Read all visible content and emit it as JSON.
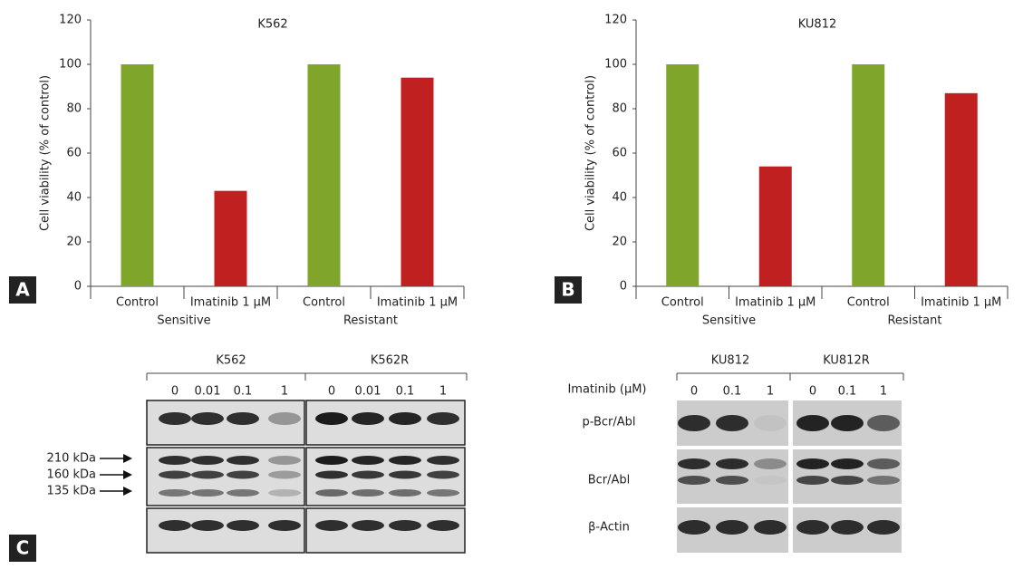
{
  "chart_data": [
    {
      "type": "bar",
      "panel": "A",
      "title": "K562",
      "y_label": "Cell viability (% of control)",
      "categories": [
        "Control",
        "Imatinib 1 μM",
        "Control",
        "Imatinib 1 μM"
      ],
      "groups": [
        "Sensitive",
        "Resistant"
      ],
      "values": [
        100,
        43,
        100,
        94
      ],
      "colors": [
        "#7fa52b",
        "#c0201f",
        "#7fa52b",
        "#c0201f"
      ],
      "ylim": [
        0,
        120
      ],
      "yticks": [
        0,
        20,
        40,
        60,
        80,
        100,
        120
      ]
    },
    {
      "type": "bar",
      "panel": "B",
      "title": "KU812",
      "y_label": "Cell viability (% of control)",
      "categories": [
        "Control",
        "Imatinib 1 μM",
        "Control",
        "Imatinib 1 μM"
      ],
      "groups": [
        "Sensitive",
        "Resistant"
      ],
      "values": [
        100,
        54,
        100,
        87
      ],
      "colors": [
        "#7fa52b",
        "#c0201f",
        "#7fa52b",
        "#c0201f"
      ],
      "ylim": [
        0,
        120
      ],
      "yticks": [
        0,
        20,
        40,
        60,
        80,
        100,
        120
      ]
    }
  ],
  "blots": {
    "panel": "C",
    "left": {
      "groups": [
        "K562",
        "K562R"
      ],
      "lanes": [
        "0",
        "0.01",
        "0.1",
        "1",
        "0",
        "0.01",
        "0.1",
        "1"
      ],
      "markers": [
        "210 kDa",
        "160 kDa",
        "135 kDa"
      ]
    },
    "right": {
      "treatment_label": "Imatinib (μM)",
      "groups": [
        "KU812",
        "KU812R"
      ],
      "lanes": [
        "0",
        "0.1",
        "1",
        "0",
        "0.1",
        "1"
      ],
      "rows": [
        "p-Bcr/Abl",
        "Bcr/Abl",
        "β-Actin"
      ]
    }
  }
}
